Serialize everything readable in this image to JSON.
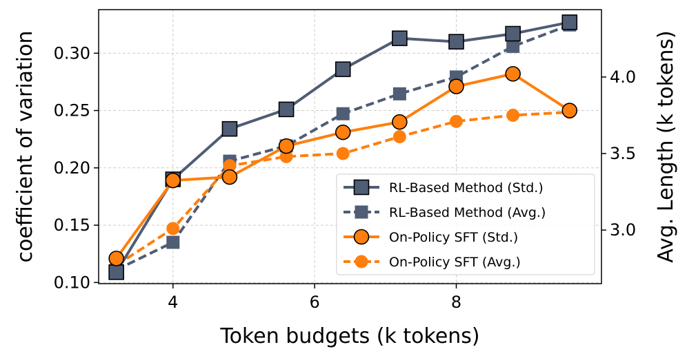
{
  "chart_data": {
    "type": "line",
    "xlabel": "Token budgets (k tokens)",
    "ylabel_left": "coefficient of variation",
    "ylabel_right": "Avg. Length (k tokens)",
    "x": [
      3.2,
      4.0,
      4.8,
      5.6,
      6.4,
      7.2,
      8.0,
      8.8,
      9.6
    ],
    "xlim": [
      2.95,
      10.05
    ],
    "xticks": [
      4,
      6,
      8
    ],
    "ylim_left": [
      0.099,
      0.338
    ],
    "yticks_left": [
      0.1,
      0.15,
      0.2,
      0.25,
      0.3
    ],
    "ylim_right": [
      2.65,
      4.44
    ],
    "yticks_right": [
      3.0,
      3.5,
      4.0
    ],
    "grid": true,
    "legend_position": "lower-right",
    "colors": {
      "rl": "#4f5d75",
      "sft": "#ff7f0e"
    },
    "series": [
      {
        "name": "RL-Based Method (Std.)",
        "axis": "left",
        "marker": "square",
        "linestyle": "solid",
        "color": "#4f5d75",
        "values": [
          0.109,
          0.19,
          0.234,
          0.251,
          0.286,
          0.313,
          0.31,
          0.317,
          0.327
        ]
      },
      {
        "name": "RL-Based Method (Avg.)",
        "axis": "right",
        "marker": "square",
        "linestyle": "dashed",
        "color": "#4f5d75",
        "values": [
          2.74,
          2.92,
          3.45,
          3.55,
          3.76,
          3.89,
          4.0,
          4.2,
          4.34
        ]
      },
      {
        "name": "On-Policy SFT (Std.)",
        "axis": "left",
        "marker": "circle",
        "linestyle": "solid",
        "color": "#ff7f0e",
        "values": [
          0.121,
          0.189,
          0.192,
          0.219,
          0.231,
          0.24,
          0.271,
          0.282,
          0.25
        ]
      },
      {
        "name": "On-Policy SFT (Avg.)",
        "axis": "right",
        "marker": "circle",
        "linestyle": "dashed",
        "color": "#ff7f0e",
        "values": [
          2.77,
          3.01,
          3.42,
          3.48,
          3.5,
          3.61,
          3.71,
          3.75,
          3.77
        ]
      }
    ]
  }
}
